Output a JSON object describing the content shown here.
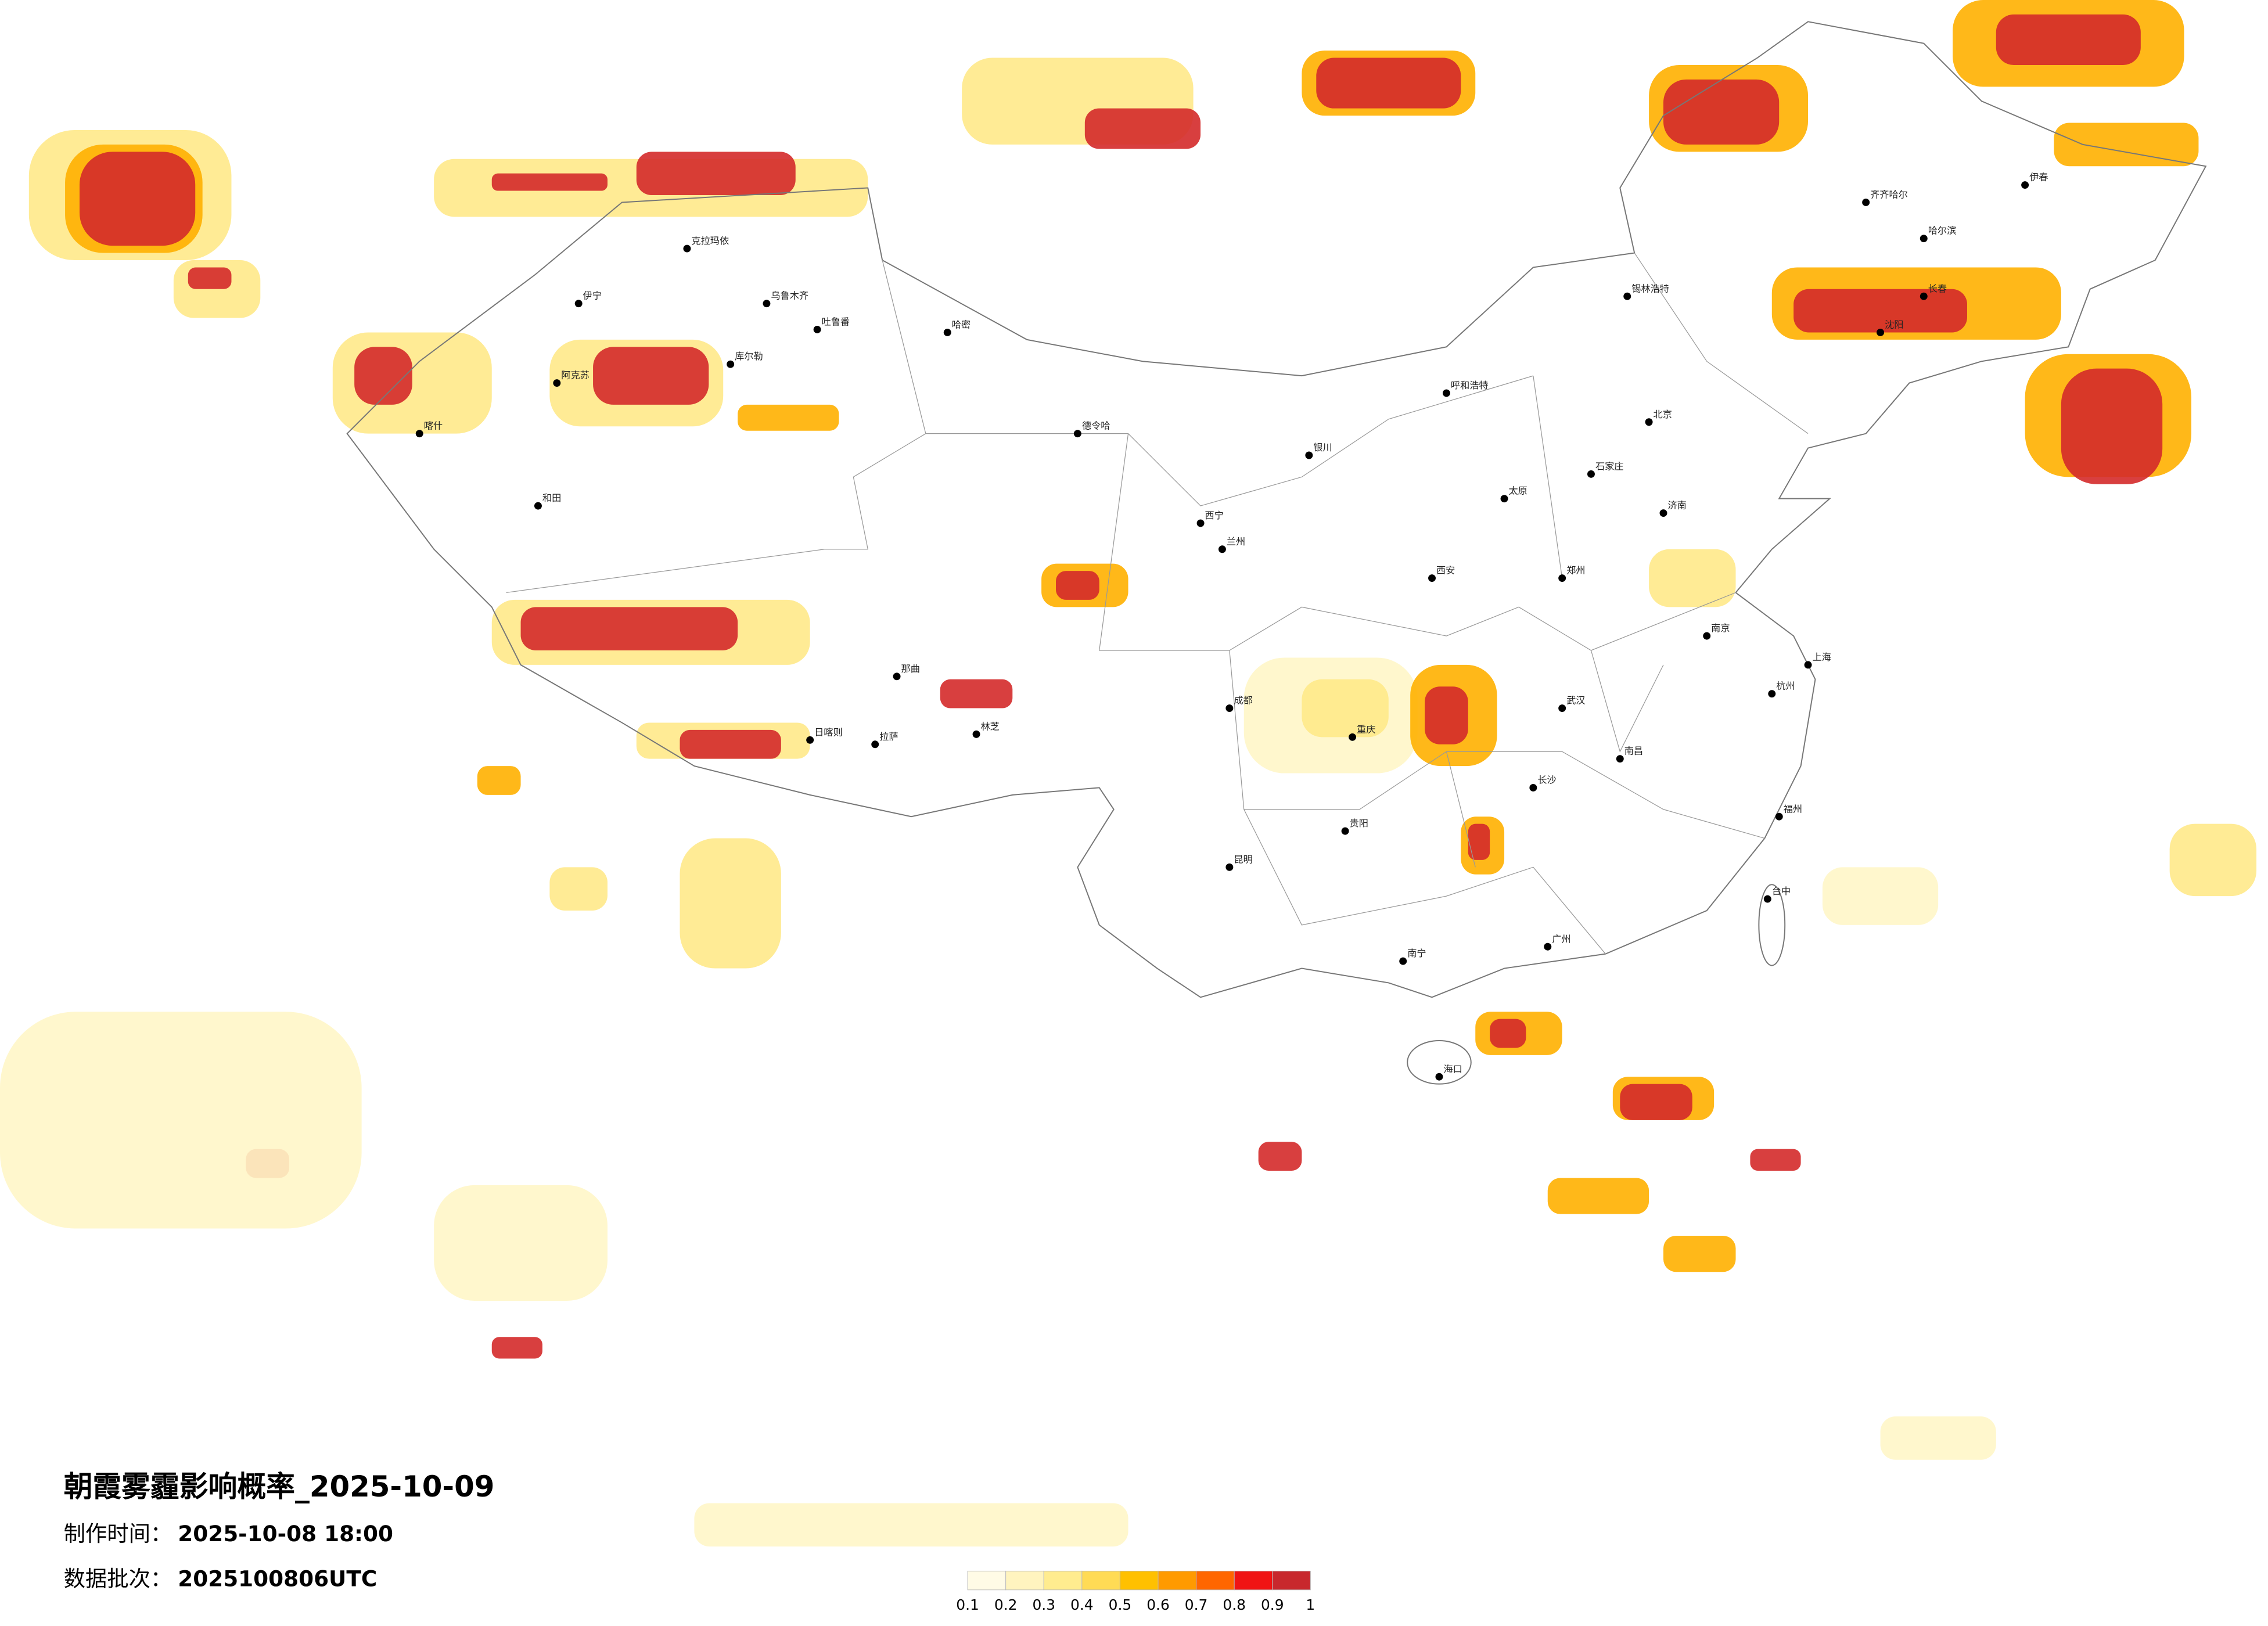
{
  "title": "朝霞雾霾影响概率_2025-10-09",
  "production_time": {
    "label": "制作时间：",
    "value": "2025-10-08 18:00"
  },
  "data_batch": {
    "label": "数据批次：",
    "value": "2025100806UTC"
  },
  "legend": {
    "colors": [
      "#fffbe6",
      "#fff4bf",
      "#ffec8f",
      "#ffdb55",
      "#ffc000",
      "#ff9a00",
      "#ff6600",
      "#f01414",
      "#c8282d"
    ],
    "ticks": [
      0.1,
      0.2,
      0.3,
      0.4,
      0.5,
      0.6,
      0.7,
      0.8,
      0.9,
      1
    ]
  },
  "cities": [
    "克拉玛依",
    "乌鲁木齐",
    "吐鲁番",
    "哈密",
    "伊宁",
    "阿克苏",
    "库尔勒",
    "和田",
    "喀什",
    "日喀则",
    "拉萨",
    "林芝",
    "那曲",
    "西宁",
    "兰州",
    "银川",
    "呼和浩特",
    "北京",
    "石家庄",
    "太原",
    "济南",
    "郑州",
    "西安",
    "成都",
    "重庆",
    "武汉",
    "长沙",
    "南昌",
    "南京",
    "上海",
    "杭州",
    "福州",
    "广州",
    "南宁",
    "海口",
    "昆明",
    "贵阳",
    "哈尔滨",
    "长春",
    "沈阳",
    "齐齐哈尔",
    "锡林浩特",
    "台中",
    "伊春",
    "德令哈"
  ]
}
